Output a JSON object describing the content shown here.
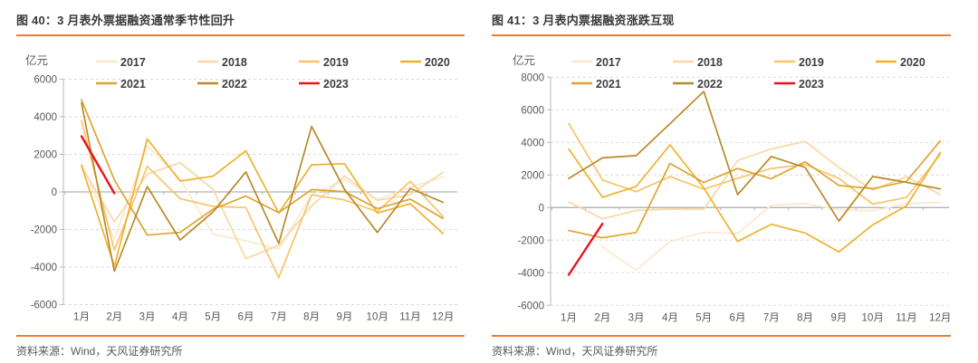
{
  "accent_color": "#ed7d31",
  "text_colors": {
    "title": "#383838",
    "axis": "#595959",
    "legend": "#3f3f3f"
  },
  "panels": [
    {
      "title": "图 40：3 月表外票据融资通常季节性回升",
      "unit_label": "亿元",
      "source": "资料来源：Wind，天风证券研究所"
    },
    {
      "title": "图 41：3 月表内票据融资涨跌互现",
      "unit_label": "亿元",
      "source": "资料来源：Wind，天风证券研究所"
    }
  ],
  "chart_data": [
    {
      "type": "line",
      "title": "图 40：3 月表外票据融资通常季节性回升",
      "ylabel": "亿元",
      "categories": [
        "1月",
        "2月",
        "3月",
        "4月",
        "5月",
        "6月",
        "7月",
        "8月",
        "9月",
        "10月",
        "11月",
        "12月"
      ],
      "ylim": [
        -6000,
        6000
      ],
      "ytick_step": 2000,
      "grid": true,
      "legend_position": "top",
      "series": [
        {
          "name": "2017",
          "color": "#fce8cd",
          "values": [
            1500,
            -2500,
            2450,
            700,
            -2250,
            -2600,
            -3050,
            -150,
            650,
            -400,
            250,
            800
          ]
        },
        {
          "name": "2018",
          "color": "#fad7a6",
          "values": [
            1350,
            -1600,
            950,
            1550,
            150,
            -3550,
            -2850,
            -750,
            850,
            -450,
            -150,
            1050
          ]
        },
        {
          "name": "2019",
          "color": "#f7c468",
          "values": [
            3786,
            -3103,
            1365,
            -357,
            -770,
            -827,
            -4563,
            -156,
            -431,
            -1053,
            571,
            -1316
          ]
        },
        {
          "name": "2020",
          "color": "#eeb22e",
          "values": [
            1403,
            -3961,
            2818,
            577,
            836,
            2190,
            -1130,
            1441,
            1502,
            -1124,
            -626,
            -2216
          ]
        },
        {
          "name": "2021",
          "color": "#dfa32e",
          "values": [
            4902,
            640,
            -2297,
            -2152,
            -926,
            -220,
            -1104,
            127,
            15,
            -886,
            -383,
            -1419
          ]
        },
        {
          "name": "2022",
          "color": "#b98a28",
          "values": [
            4731,
            -4228,
            286,
            -2557,
            -1068,
            1065,
            -2744,
            3485,
            134,
            -2157,
            190,
            -554
          ]
        },
        {
          "name": "2023",
          "color": "#e8151c",
          "values": [
            2963,
            -70,
            null,
            null,
            null,
            null,
            null,
            null,
            null,
            null,
            null,
            null
          ]
        }
      ]
    },
    {
      "type": "line",
      "title": "图 41：3 月表内票据融资涨跌互现",
      "ylabel": "亿元",
      "categories": [
        "1月",
        "2月",
        "3月",
        "4月",
        "5月",
        "6月",
        "7月",
        "8月",
        "9月",
        "10月",
        "11月",
        "12月"
      ],
      "ylim": [
        -6000,
        8000
      ],
      "ytick_step": 2000,
      "grid": true,
      "legend_position": "top",
      "series": [
        {
          "name": "2017",
          "color": "#fce8cd",
          "values": [
            null,
            -2420,
            -3830,
            -2080,
            -1520,
            -1600,
            150,
            240,
            -140,
            -200,
            240,
            330
          ]
        },
        {
          "name": "2018",
          "color": "#fad7a6",
          "values": [
            347,
            -690,
            -180,
            -90,
            -100,
            2890,
            3600,
            4060,
            2460,
            1064,
            1900,
            800
          ]
        },
        {
          "name": "2019",
          "color": "#f7c468",
          "values": [
            5160,
            1695,
            980,
            1900,
            1130,
            1800,
            2400,
            2650,
            1790,
            214,
            624,
            3250
          ]
        },
        {
          "name": "2020",
          "color": "#eeb22e",
          "values": [
            3596,
            634,
            1300,
            3852,
            1200,
            -2080,
            -1021,
            -1560,
            -2725,
            -1060,
            100,
            3390
          ]
        },
        {
          "name": "2021",
          "color": "#dfa32e",
          "values": [
            -1405,
            -1855,
            -1525,
            2711,
            1538,
            2400,
            1771,
            2813,
            1353,
            1160,
            1605,
            4087
          ]
        },
        {
          "name": "2022",
          "color": "#b98a28",
          "values": [
            1788,
            3052,
            3187,
            5148,
            7129,
            796,
            3136,
            2460,
            -827,
            1905,
            1549,
            1146
          ]
        },
        {
          "name": "2023",
          "color": "#e8151c",
          "values": [
            -4127,
            -989,
            null,
            null,
            null,
            null,
            null,
            null,
            null,
            null,
            null,
            null
          ]
        }
      ]
    }
  ]
}
